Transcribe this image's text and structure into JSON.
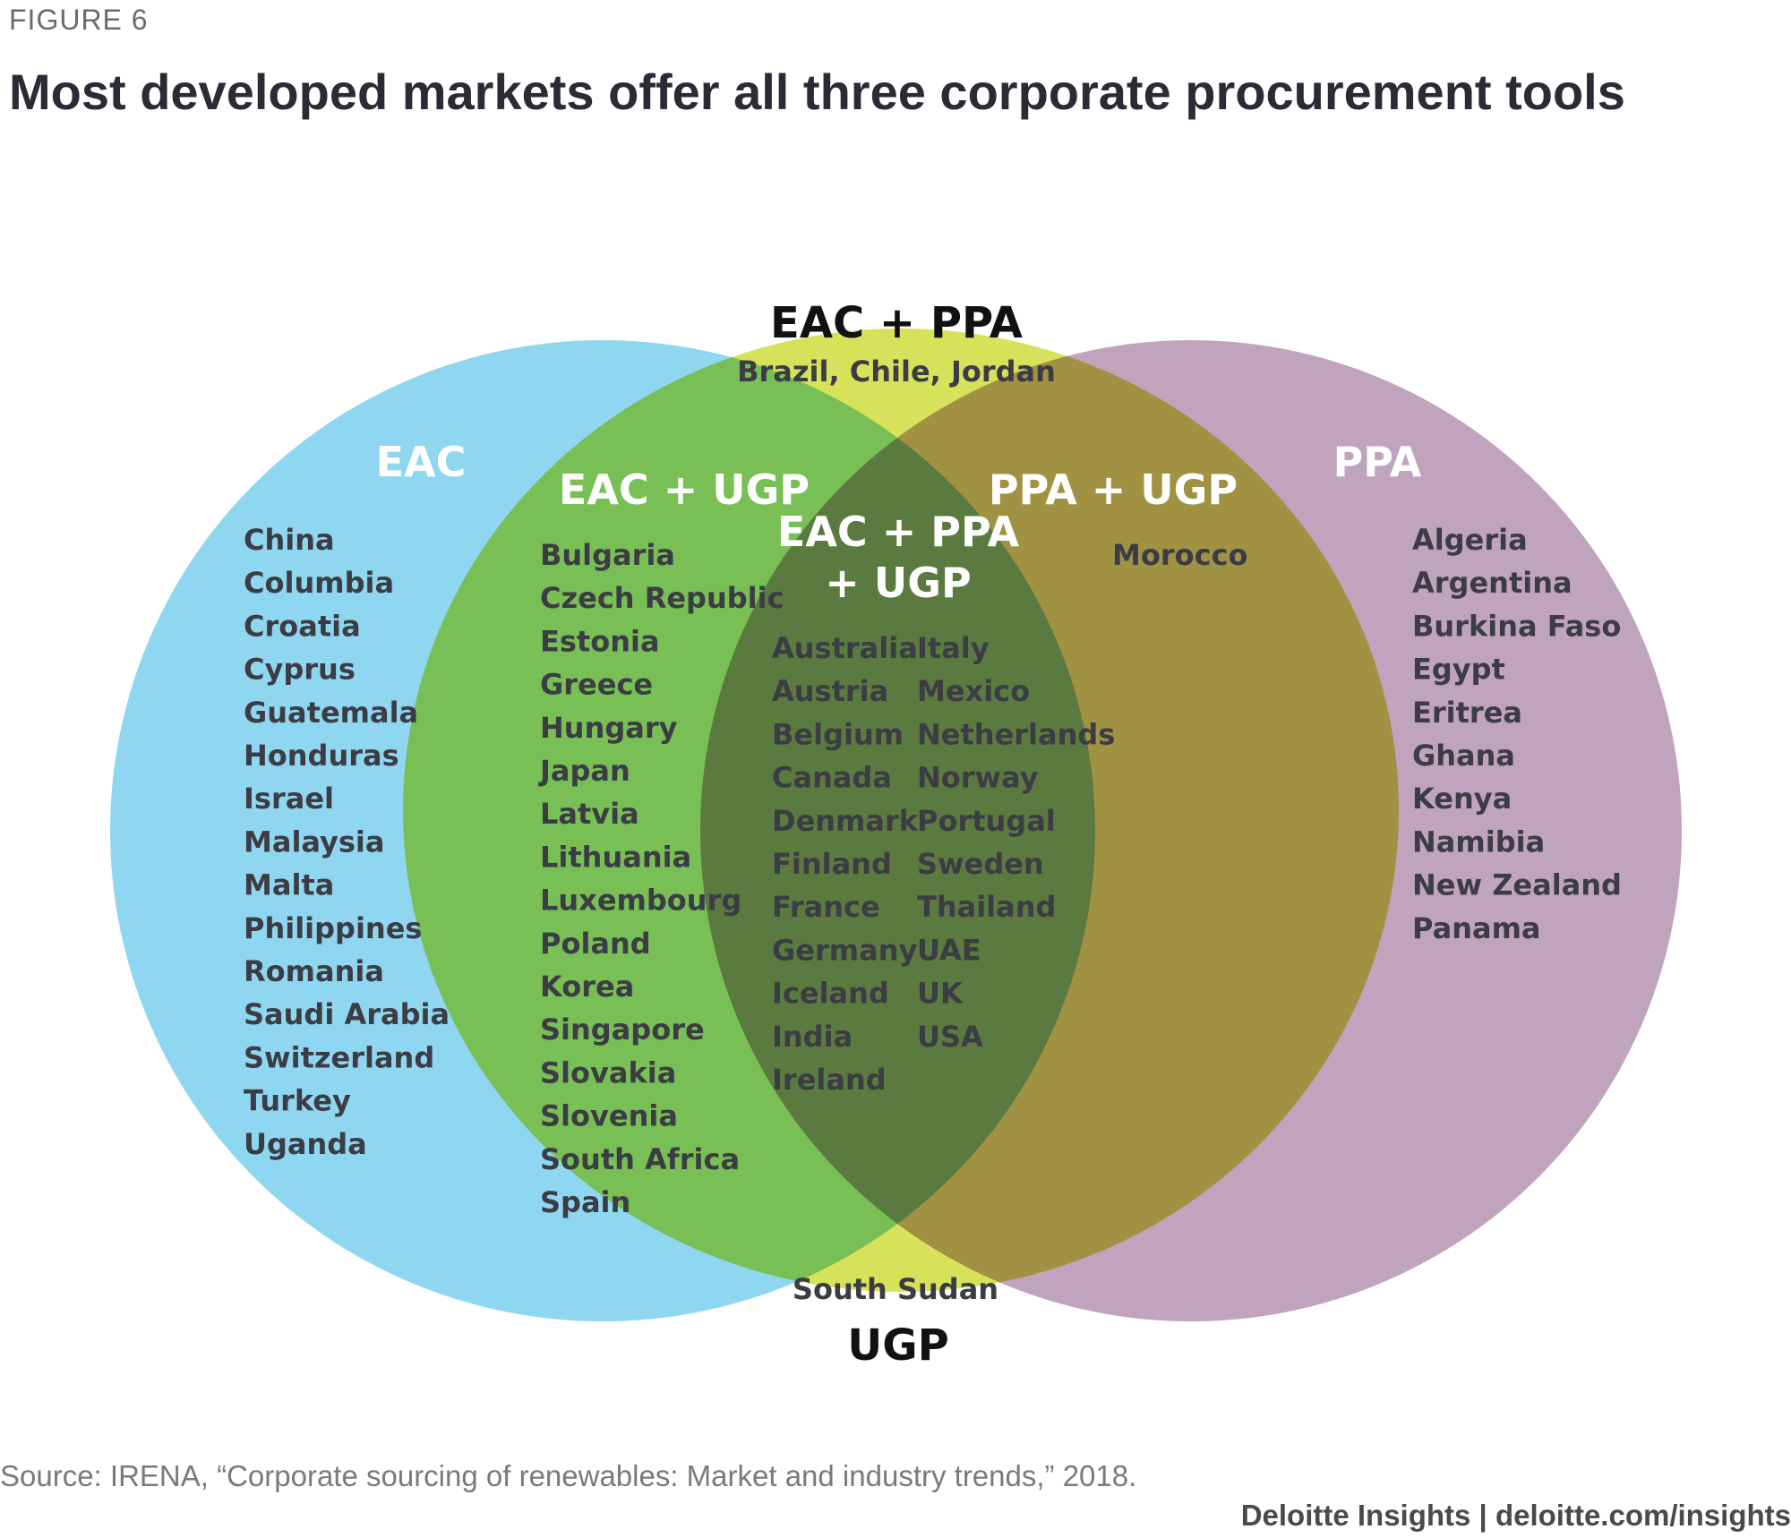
{
  "figure_label": "FIGURE 6",
  "title": "Most developed markets offer all three corporate procurement tools",
  "colors": {
    "eac": "#8fd7f1",
    "ugp": "#d6e35a",
    "ppa": "#c0a3bd",
    "eac_ugp_overlap": "#95c4a9",
    "center_overlap": "#88af98",
    "ppa_ugp_overlap": "#bdc26f"
  },
  "sets": {
    "eac": {
      "label": "EAC",
      "countries": [
        "China",
        "Columbia",
        "Croatia",
        "Cyprus",
        "Guatemala",
        "Honduras",
        "Israel",
        "Malaysia",
        "Malta",
        "Philippines",
        "Romania",
        "Saudi Arabia",
        "Switzerland",
        "Turkey",
        "Uganda"
      ]
    },
    "eac_ugp": {
      "label": "EAC + UGP",
      "countries": [
        "Bulgaria",
        "Czech Republic",
        "Estonia",
        "Greece",
        "Hungary",
        "Japan",
        "Latvia",
        "Lithuania",
        "Luxembourg",
        "Poland",
        "Korea",
        "Singapore",
        "Slovakia",
        "Slovenia",
        "South Africa",
        "Spain"
      ]
    },
    "all_three": {
      "label_line1": "EAC + PPA",
      "label_line2": "+ UGP",
      "countries_col1": [
        "Australia",
        "Austria",
        "Belgium",
        "Canada",
        "Denmark",
        "Finland",
        "France",
        "Germany",
        "Iceland",
        "India",
        "Ireland"
      ],
      "countries_col2": [
        "Italy",
        "Mexico",
        "Netherlands",
        "Norway",
        "Portugal",
        "Sweden",
        "Thailand",
        "UAE",
        "UK",
        "USA"
      ]
    },
    "ppa_ugp": {
      "label": "PPA + UGP",
      "countries": [
        "Morocco"
      ]
    },
    "ppa": {
      "label": "PPA",
      "countries": [
        "Algeria",
        "Argentina",
        "Burkina Faso",
        "Egypt",
        "Eritrea",
        "Ghana",
        "Kenya",
        "Namibia",
        "New Zealand",
        "Panama"
      ]
    },
    "eac_ppa": {
      "label": "EAC + PPA",
      "countries_text": "Brazil, Chile, Jordan"
    },
    "ugp": {
      "label": "UGP",
      "countries_text": "South Sudan"
    }
  },
  "source": "Source: IRENA, “Corporate sourcing of renewables: Market and industry trends,” 2018.",
  "brand": "Deloitte Insights | deloitte.com/insights"
}
